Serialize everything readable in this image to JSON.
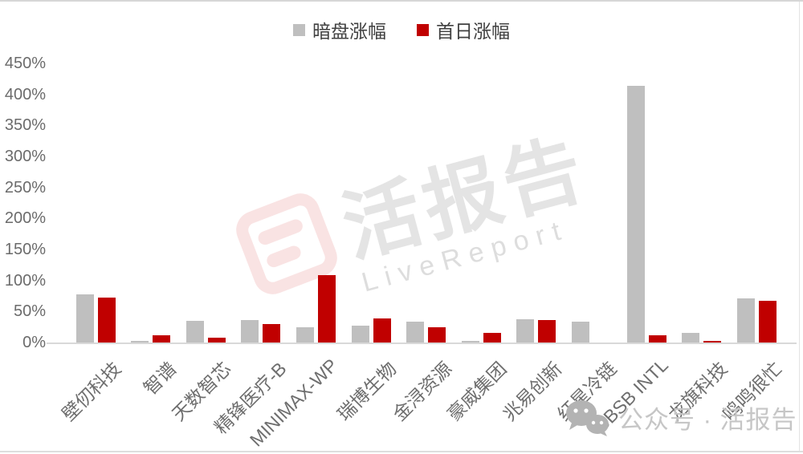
{
  "legend": {
    "items": [
      {
        "label": "暗盘涨幅",
        "color": "#BFBFBF"
      },
      {
        "label": "首日涨幅",
        "color": "#C00000"
      }
    ]
  },
  "chart_data": {
    "type": "bar",
    "title": "",
    "categories": [
      "壁仞科技",
      "智谱",
      "天数智芯",
      "精锋医疗-B",
      "MINIMAX-WP",
      "瑞博生物",
      "金浔资源",
      "豪威集团",
      "兆易创新",
      "红星冷链",
      "BBSB INTL",
      "龙旗科技",
      "鸣鸣很忙"
    ],
    "series": [
      {
        "name": "暗盘涨幅",
        "color": "#BFBFBF",
        "values": [
          78,
          3,
          35,
          36,
          25,
          27,
          34,
          2,
          38,
          34,
          414,
          16,
          71
        ]
      },
      {
        "name": "首日涨幅",
        "color": "#C00000",
        "values": [
          73,
          11,
          8,
          30,
          108,
          39,
          24,
          15,
          36,
          0,
          11,
          3,
          67
        ]
      }
    ],
    "xlabel": "",
    "ylabel": "",
    "ylim": [
      0,
      450
    ],
    "ytick_step": 50,
    "ytick_suffix": "%",
    "grid": false,
    "legend_position": "top center"
  },
  "watermark": {
    "title": "活报告",
    "subtitle": "LiveReport"
  },
  "footer": {
    "wechat_label": "公众号 · 活报告"
  }
}
